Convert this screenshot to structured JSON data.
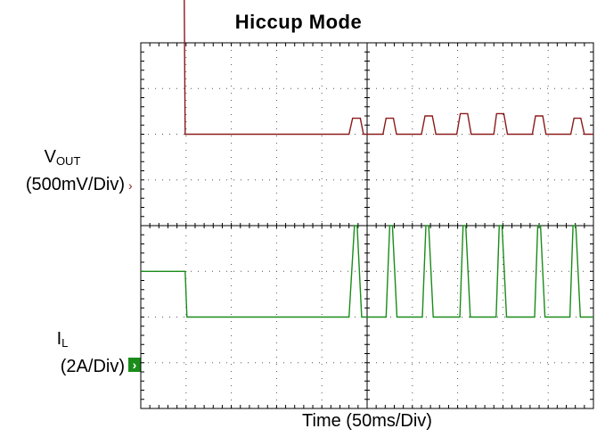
{
  "chart_data": {
    "type": "line",
    "title": "Hiccup Mode",
    "xlabel": "Time (50ms/Div)",
    "x_divisions": 10,
    "y_divisions": 8,
    "grid": true,
    "channels": [
      {
        "name_main": "V",
        "name_sub": "OUT",
        "scale": "(500mV/Div)",
        "color": "#8b1a1a",
        "marker_color": "#8b1a1a",
        "marker_symbol": "›",
        "ground_div": 2,
        "x": [
          0,
          0.95,
          0.98,
          4.6,
          4.68,
          4.85,
          4.92,
          5.35,
          5.42,
          5.58,
          5.65,
          6.2,
          6.28,
          6.44,
          6.52,
          6.98,
          7.06,
          7.22,
          7.3,
          7.8,
          7.86,
          8.02,
          8.1,
          8.65,
          8.72,
          8.88,
          8.95,
          9.5,
          9.57,
          9.72,
          9.8,
          10
        ],
        "y": [
          6.45,
          6.45,
          2.0,
          2.0,
          2.35,
          2.35,
          2.0,
          2.0,
          2.35,
          2.35,
          2.0,
          2.0,
          2.4,
          2.4,
          2.0,
          2.0,
          2.45,
          2.45,
          2.0,
          2.0,
          2.45,
          2.45,
          2.0,
          2.0,
          2.4,
          2.4,
          2.0,
          2.0,
          2.35,
          2.35,
          2.0,
          2.0
        ]
      },
      {
        "name_main": "I",
        "name_sub": "L",
        "scale": "(2A/Div)",
        "color": "#1a8c1a",
        "marker_color": "#1a8c1a",
        "marker_symbol": "›",
        "ground_div": -2,
        "x": [
          0,
          0.98,
          1.02,
          4.6,
          4.72,
          4.78,
          4.88,
          5.42,
          5.5,
          5.56,
          5.66,
          6.22,
          6.3,
          6.36,
          6.46,
          7.05,
          7.12,
          7.18,
          7.28,
          7.85,
          7.92,
          7.98,
          8.08,
          8.7,
          8.77,
          8.83,
          8.93,
          9.48,
          9.55,
          9.61,
          9.71,
          10
        ],
        "y": [
          -1.0,
          -1.0,
          -2.0,
          -2.0,
          0.0,
          0.0,
          -2.0,
          -2.0,
          0.0,
          0.0,
          -2.0,
          -2.0,
          0.0,
          0.0,
          -2.0,
          -2.0,
          0.0,
          0.0,
          -2.0,
          -2.0,
          0.0,
          0.0,
          -2.0,
          -2.0,
          0.0,
          0.0,
          -2.0,
          -2.0,
          0.0,
          0.0,
          -2.0,
          -2.0
        ]
      }
    ]
  }
}
